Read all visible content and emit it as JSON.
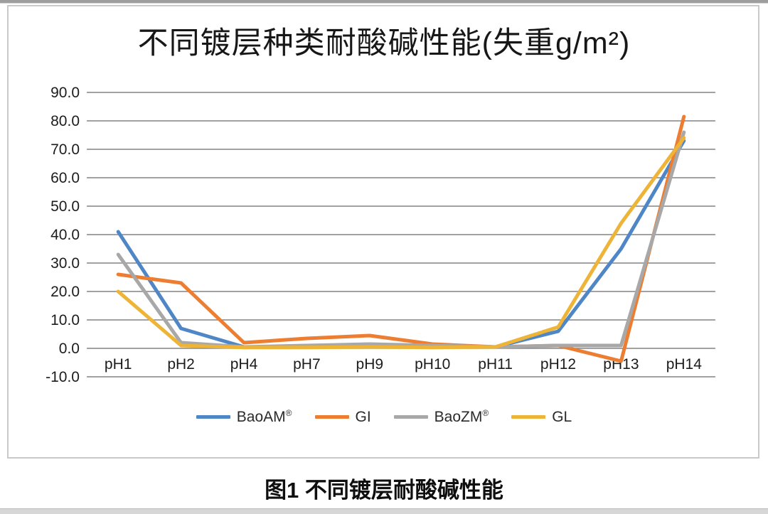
{
  "page": {
    "caption": "图1 不同镀层耐酸碱性能"
  },
  "chart_data": {
    "type": "line",
    "title": "不同镀层种类耐酸碱性能(失重g/m²)",
    "ylabel": "",
    "xlabel": "",
    "categories": [
      "pH1",
      "pH2",
      "pH4",
      "pH7",
      "pH9",
      "pH10",
      "pH11",
      "pH12",
      "pH13",
      "pH14"
    ],
    "series": [
      {
        "name": "BaoAM",
        "name_suffix": "®",
        "color": "#4E86C6",
        "values": [
          41.0,
          7.0,
          0.5,
          0.5,
          1.0,
          0.5,
          0.5,
          6.0,
          35.0,
          73.0
        ]
      },
      {
        "name": "GI",
        "name_suffix": "",
        "color": "#ED7D31",
        "values": [
          26.0,
          23.0,
          2.0,
          3.5,
          4.5,
          1.5,
          0.5,
          1.0,
          -4.5,
          81.5
        ]
      },
      {
        "name": "BaoZM",
        "name_suffix": "®",
        "color": "#A8A8A8",
        "values": [
          33.0,
          2.0,
          0.5,
          1.0,
          1.5,
          1.0,
          0.5,
          1.0,
          1.0,
          76.0
        ]
      },
      {
        "name": "GL",
        "name_suffix": "",
        "color": "#EEB437",
        "values": [
          20.0,
          1.0,
          0.3,
          0.3,
          0.5,
          0.3,
          0.5,
          7.5,
          44.0,
          74.0
        ]
      }
    ],
    "y_axis": {
      "min": -10,
      "max": 90,
      "step": 10,
      "tick_labels": [
        "90.0",
        "80.0",
        "70.0",
        "60.0",
        "50.0",
        "40.0",
        "30.0",
        "20.0",
        "10.0",
        "0.0",
        "-10.0"
      ]
    },
    "grid": true,
    "legend_position": "bottom",
    "colors": {
      "gridline": "#848484",
      "axis_text": "#1c1c1c"
    }
  }
}
